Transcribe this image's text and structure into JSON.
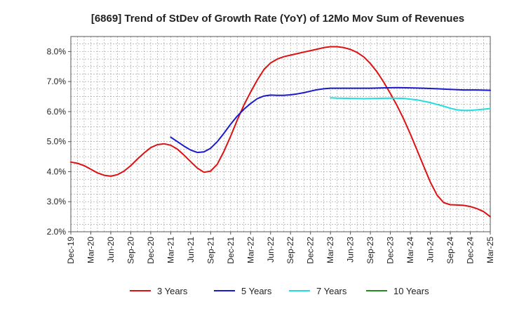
{
  "chart_data": {
    "type": "line",
    "title": "[6869]  Trend of StDev of Growth Rate (YoY) of 12Mo Mov Sum of Revenues",
    "xlabel": "",
    "ylabel": "",
    "ylim": [
      2.0,
      8.5
    ],
    "y_ticks": [
      2.0,
      3.0,
      4.0,
      5.0,
      6.0,
      7.0,
      8.0
    ],
    "y_tick_labels": [
      "2.0%",
      "3.0%",
      "4.0%",
      "5.0%",
      "6.0%",
      "7.0%",
      "8.0%"
    ],
    "x_tick_labels": [
      "Dec-19",
      "Mar-20",
      "Jun-20",
      "Sep-20",
      "Dec-20",
      "Mar-21",
      "Jun-21",
      "Sep-21",
      "Dec-21",
      "Mar-22",
      "Jun-22",
      "Sep-22",
      "Dec-22",
      "Mar-23",
      "Jun-23",
      "Sep-23",
      "Dec-23",
      "Mar-24",
      "Jun-24",
      "Sep-24",
      "Dec-24",
      "Mar-25"
    ],
    "x_unit": "months since Dec-19",
    "grid": true,
    "legend_position": "bottom",
    "series": [
      {
        "name": "3 Years",
        "color": "#dd1111",
        "points": [
          [
            0,
            4.32
          ],
          [
            1,
            4.28
          ],
          [
            2,
            4.2
          ],
          [
            3,
            4.08
          ],
          [
            4,
            3.96
          ],
          [
            5,
            3.88
          ],
          [
            6,
            3.85
          ],
          [
            7,
            3.9
          ],
          [
            8,
            4.02
          ],
          [
            9,
            4.2
          ],
          [
            10,
            4.42
          ],
          [
            11,
            4.62
          ],
          [
            12,
            4.8
          ],
          [
            13,
            4.9
          ],
          [
            14,
            4.93
          ],
          [
            15,
            4.88
          ],
          [
            16,
            4.75
          ],
          [
            17,
            4.55
          ],
          [
            18,
            4.33
          ],
          [
            19,
            4.12
          ],
          [
            20,
            3.98
          ],
          [
            21,
            4.02
          ],
          [
            22,
            4.25
          ],
          [
            23,
            4.68
          ],
          [
            24,
            5.18
          ],
          [
            25,
            5.72
          ],
          [
            26,
            6.22
          ],
          [
            27,
            6.65
          ],
          [
            28,
            7.05
          ],
          [
            29,
            7.4
          ],
          [
            30,
            7.62
          ],
          [
            31,
            7.75
          ],
          [
            32,
            7.83
          ],
          [
            33,
            7.88
          ],
          [
            34,
            7.93
          ],
          [
            35,
            7.98
          ],
          [
            36,
            8.03
          ],
          [
            37,
            8.08
          ],
          [
            38,
            8.13
          ],
          [
            39,
            8.16
          ],
          [
            40,
            8.16
          ],
          [
            41,
            8.13
          ],
          [
            42,
            8.07
          ],
          [
            43,
            7.97
          ],
          [
            44,
            7.82
          ],
          [
            45,
            7.6
          ],
          [
            46,
            7.32
          ],
          [
            47,
            6.98
          ],
          [
            48,
            6.6
          ],
          [
            49,
            6.2
          ],
          [
            50,
            5.75
          ],
          [
            51,
            5.25
          ],
          [
            52,
            4.72
          ],
          [
            53,
            4.18
          ],
          [
            54,
            3.65
          ],
          [
            55,
            3.22
          ],
          [
            56,
            2.97
          ],
          [
            57,
            2.9
          ],
          [
            58,
            2.89
          ],
          [
            59,
            2.88
          ],
          [
            60,
            2.84
          ],
          [
            61,
            2.77
          ],
          [
            62,
            2.67
          ],
          [
            63,
            2.5
          ]
        ]
      },
      {
        "name": "5 Years",
        "color": "#1a1acc",
        "points": [
          [
            15,
            5.15
          ],
          [
            16,
            5.0
          ],
          [
            17,
            4.85
          ],
          [
            18,
            4.72
          ],
          [
            19,
            4.64
          ],
          [
            20,
            4.66
          ],
          [
            21,
            4.78
          ],
          [
            22,
            5.0
          ],
          [
            23,
            5.28
          ],
          [
            24,
            5.58
          ],
          [
            25,
            5.85
          ],
          [
            26,
            6.08
          ],
          [
            27,
            6.27
          ],
          [
            28,
            6.43
          ],
          [
            29,
            6.52
          ],
          [
            30,
            6.55
          ],
          [
            31,
            6.54
          ],
          [
            32,
            6.54
          ],
          [
            33,
            6.56
          ],
          [
            34,
            6.59
          ],
          [
            35,
            6.63
          ],
          [
            36,
            6.68
          ],
          [
            37,
            6.73
          ],
          [
            38,
            6.76
          ],
          [
            39,
            6.78
          ],
          [
            41,
            6.78
          ],
          [
            43,
            6.78
          ],
          [
            45,
            6.78
          ],
          [
            47,
            6.79
          ],
          [
            49,
            6.8
          ],
          [
            51,
            6.79
          ],
          [
            53,
            6.78
          ],
          [
            55,
            6.76
          ],
          [
            57,
            6.74
          ],
          [
            59,
            6.72
          ],
          [
            61,
            6.72
          ],
          [
            63,
            6.71
          ]
        ]
      },
      {
        "name": "7 Years",
        "color": "#22dddd",
        "points": [
          [
            39,
            6.46
          ],
          [
            40,
            6.45
          ],
          [
            42,
            6.44
          ],
          [
            44,
            6.43
          ],
          [
            46,
            6.44
          ],
          [
            48,
            6.45
          ],
          [
            50,
            6.44
          ],
          [
            52,
            6.39
          ],
          [
            54,
            6.3
          ],
          [
            55,
            6.24
          ],
          [
            56,
            6.18
          ],
          [
            57,
            6.11
          ],
          [
            58,
            6.06
          ],
          [
            59,
            6.04
          ],
          [
            60,
            6.04
          ],
          [
            61,
            6.06
          ],
          [
            62,
            6.08
          ],
          [
            63,
            6.1
          ]
        ]
      },
      {
        "name": "10 Years",
        "color": "#228b22",
        "points": []
      }
    ]
  }
}
